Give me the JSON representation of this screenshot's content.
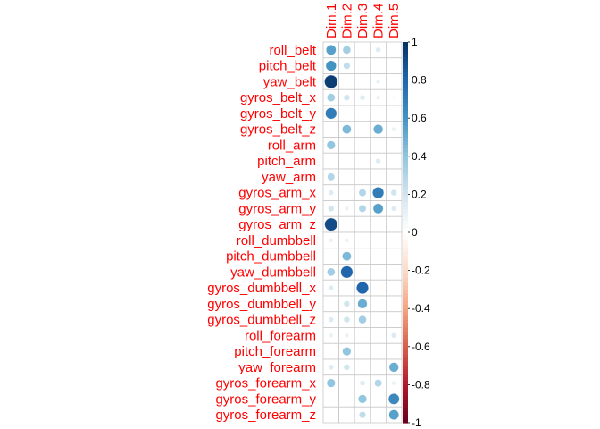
{
  "chart_data": {
    "type": "heatmap",
    "subtype": "correlation-circles",
    "columns": [
      "Dim.1",
      "Dim.2",
      "Dim.3",
      "Dim.4",
      "Dim.5"
    ],
    "rows": [
      "roll_belt",
      "pitch_belt",
      "yaw_belt",
      "gyros_belt_x",
      "gyros_belt_y",
      "gyros_belt_z",
      "roll_arm",
      "pitch_arm",
      "yaw_arm",
      "gyros_arm_x",
      "gyros_arm_y",
      "gyros_arm_z",
      "roll_dumbbell",
      "pitch_dumbbell",
      "yaw_dumbbell",
      "gyros_dumbbell_x",
      "gyros_dumbbell_y",
      "gyros_dumbbell_z",
      "roll_forearm",
      "pitch_forearm",
      "yaw_forearm",
      "gyros_forearm_x",
      "gyros_forearm_y",
      "gyros_forearm_z"
    ],
    "values": [
      [
        0.55,
        0.35,
        0,
        0.15,
        0
      ],
      [
        0.6,
        0.25,
        0,
        0,
        0
      ],
      [
        0.95,
        0,
        0,
        0.1,
        0
      ],
      [
        0.35,
        0.2,
        0.15,
        0.1,
        0.05
      ],
      [
        0.7,
        0,
        0,
        0,
        0
      ],
      [
        0,
        0.45,
        0,
        0.5,
        0.1
      ],
      [
        0.4,
        0,
        0,
        0,
        0
      ],
      [
        0,
        0,
        0,
        0.15,
        0
      ],
      [
        0.3,
        0,
        0,
        0,
        0
      ],
      [
        0.15,
        0,
        0.3,
        0.7,
        0.2
      ],
      [
        0.2,
        0.1,
        0.3,
        0.55,
        0.15
      ],
      [
        0.9,
        0,
        0,
        0,
        0
      ],
      [
        0.1,
        0.1,
        0,
        0,
        0
      ],
      [
        0,
        0.45,
        0,
        0,
        0
      ],
      [
        0.35,
        0.8,
        0,
        0,
        0
      ],
      [
        0.15,
        0,
        0.8,
        0,
        0
      ],
      [
        0,
        0.2,
        0.5,
        0,
        0
      ],
      [
        0.15,
        0.2,
        0.35,
        0,
        0
      ],
      [
        0.1,
        0.1,
        0,
        0,
        0.15
      ],
      [
        0,
        0.4,
        0,
        0,
        0
      ],
      [
        0.15,
        0.2,
        0,
        0,
        0.5
      ],
      [
        0.4,
        0,
        0.15,
        0.3,
        0.1
      ],
      [
        0,
        0,
        0.4,
        0,
        0.65
      ],
      [
        0,
        0,
        0.25,
        0,
        0.55
      ]
    ],
    "colorbar": {
      "ticks": [
        1,
        0.8,
        0.6,
        0.4,
        0.2,
        0,
        -0.2,
        -0.4,
        -0.6,
        -0.8,
        -1
      ],
      "tick_labels": [
        "1",
        "0.8",
        "0.6",
        "0.4",
        "0.2",
        "0",
        "-0.2",
        "-0.4",
        "-0.6",
        "-0.8",
        "-1"
      ],
      "range": [
        -1,
        1
      ]
    },
    "label_color": "#ff0000",
    "grid": true,
    "legend": "right"
  }
}
